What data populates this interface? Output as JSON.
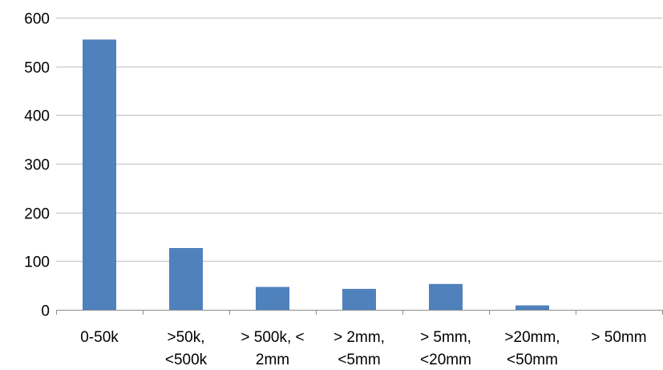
{
  "chart_data": {
    "type": "bar",
    "title": "",
    "xlabel": "",
    "ylabel": "",
    "categories": [
      [
        "0-50k"
      ],
      [
        ">50k,",
        "<500k"
      ],
      [
        "> 500k, <",
        "2mm"
      ],
      [
        "> 2mm,",
        "<5mm"
      ],
      [
        "> 5mm,",
        "<20mm"
      ],
      [
        ">20mm,",
        "<50mm"
      ],
      [
        "> 50mm"
      ]
    ],
    "values": [
      555,
      127,
      47,
      43,
      53,
      9,
      0
    ],
    "ylim": [
      0,
      600
    ],
    "yticks": [
      0,
      100,
      200,
      300,
      400,
      500,
      600
    ],
    "grid": true,
    "legend": "none",
    "bar_color": "#4f81bd",
    "grid_color": "#bfbfbf",
    "axis_color": "#8c8c8c"
  }
}
